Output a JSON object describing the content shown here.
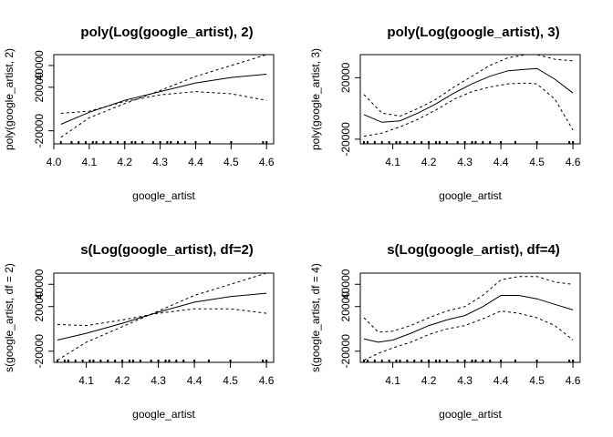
{
  "chart_data": [
    {
      "type": "line",
      "title": "poly(Log(google_artist), 2)",
      "xlabel": "google_artist",
      "ylabel": "poly(google_artist, 2)",
      "xlim": [
        4.0,
        4.62
      ],
      "ylim": [
        -32000,
        50000
      ],
      "xticks": [
        "4.0",
        "4.1",
        "4.2",
        "4.3",
        "4.4",
        "4.5",
        "4.6"
      ],
      "yticks": [
        "-20000",
        "20000",
        "40000"
      ],
      "rug": [
        4.02,
        4.05,
        4.07,
        4.09,
        4.11,
        4.12,
        4.14,
        4.16,
        4.18,
        4.2,
        4.22,
        4.23,
        4.25,
        4.28,
        4.3,
        4.32,
        4.33,
        4.35,
        4.37,
        4.4,
        4.44,
        4.5,
        4.59,
        4.6
      ],
      "series": [
        {
          "style": "solid",
          "x": [
            4.02,
            4.1,
            4.2,
            4.3,
            4.4,
            4.5,
            4.6
          ],
          "values": [
            -14000,
            -3000,
            8000,
            16000,
            24000,
            29000,
            32000
          ]
        },
        {
          "style": "dashed",
          "x": [
            4.02,
            4.1,
            4.2,
            4.3,
            4.4,
            4.5,
            4.6
          ],
          "values": [
            -26000,
            -8000,
            5000,
            17000,
            30000,
            40000,
            50000
          ]
        },
        {
          "style": "dashed",
          "x": [
            4.02,
            4.1,
            4.2,
            4.3,
            4.4,
            4.5,
            4.6
          ],
          "values": [
            -4000,
            -2000,
            7000,
            13000,
            16000,
            14000,
            8000
          ]
        }
      ]
    },
    {
      "type": "line",
      "title": "poly(Log(google_artist), 3)",
      "xlabel": "google_artist",
      "ylabel": "poly(google_artist, 3)",
      "xlim": [
        4.01,
        4.62
      ],
      "ylim": [
        -23000,
        35000
      ],
      "xticks": [
        "4.1",
        "4.2",
        "4.3",
        "4.4",
        "4.5",
        "4.6"
      ],
      "yticks": [
        "-20000",
        "20000"
      ],
      "rug": [
        4.02,
        4.03,
        4.05,
        4.07,
        4.09,
        4.11,
        4.12,
        4.14,
        4.16,
        4.18,
        4.2,
        4.22,
        4.23,
        4.25,
        4.28,
        4.3,
        4.32,
        4.33,
        4.35,
        4.37,
        4.4,
        4.44,
        4.5,
        4.59,
        4.6
      ],
      "series": [
        {
          "style": "solid",
          "x": [
            4.02,
            4.07,
            4.12,
            4.17,
            4.22,
            4.27,
            4.32,
            4.37,
            4.42,
            4.47,
            4.5,
            4.55,
            4.6
          ],
          "values": [
            -4000,
            -9000,
            -8000,
            -3000,
            3000,
            10000,
            16000,
            21000,
            24500,
            25500,
            26000,
            19000,
            10000
          ]
        },
        {
          "style": "dashed",
          "x": [
            4.02,
            4.07,
            4.12,
            4.17,
            4.22,
            4.27,
            4.32,
            4.37,
            4.42,
            4.47,
            4.5,
            4.55,
            4.6
          ],
          "values": [
            9000,
            -3000,
            -5000,
            0,
            6000,
            14000,
            21000,
            28000,
            33000,
            35000,
            35000,
            32000,
            31000
          ]
        },
        {
          "style": "dashed",
          "x": [
            4.02,
            4.07,
            4.12,
            4.17,
            4.22,
            4.27,
            4.32,
            4.37,
            4.42,
            4.47,
            4.5,
            4.55,
            4.6
          ],
          "values": [
            -18000,
            -16000,
            -12000,
            -7000,
            -1000,
            6000,
            11000,
            14000,
            16000,
            16500,
            16000,
            6000,
            -14000
          ]
        }
      ]
    },
    {
      "type": "line",
      "title": "s(Log(google_artist), df=2)",
      "xlabel": "google_artist",
      "ylabel": "s(google_artist, df = 2)",
      "xlim": [
        4.01,
        4.62
      ],
      "ylim": [
        -30000,
        50000
      ],
      "xticks": [
        "4.1",
        "4.2",
        "4.3",
        "4.4",
        "4.5",
        "4.6"
      ],
      "yticks": [
        "-20000",
        "20000",
        "40000"
      ],
      "rug": [
        4.02,
        4.04,
        4.05,
        4.07,
        4.09,
        4.11,
        4.12,
        4.14,
        4.16,
        4.18,
        4.2,
        4.22,
        4.23,
        4.25,
        4.28,
        4.3,
        4.32,
        4.33,
        4.35,
        4.37,
        4.4,
        4.44,
        4.5,
        4.59,
        4.6
      ],
      "series": [
        {
          "style": "solid",
          "x": [
            4.02,
            4.1,
            4.2,
            4.3,
            4.4,
            4.5,
            4.6
          ],
          "values": [
            -10000,
            -4000,
            5000,
            15000,
            24000,
            29000,
            32000
          ]
        },
        {
          "style": "dashed",
          "x": [
            4.02,
            4.1,
            4.2,
            4.3,
            4.4,
            4.5,
            4.6
          ],
          "values": [
            -28000,
            -12000,
            2000,
            16000,
            30000,
            40000,
            50000
          ]
        },
        {
          "style": "dashed",
          "x": [
            4.02,
            4.1,
            4.2,
            4.3,
            4.4,
            4.5,
            4.6
          ],
          "values": [
            4000,
            3000,
            8000,
            14000,
            18000,
            18000,
            14000
          ]
        }
      ]
    },
    {
      "type": "line",
      "title": "s(Log(google_artist), df=4)",
      "xlabel": "google_artist",
      "ylabel": "s(google_artist, df = 4)",
      "xlim": [
        4.01,
        4.62
      ],
      "ylim": [
        -30000,
        50000
      ],
      "xticks": [
        "4.1",
        "4.2",
        "4.3",
        "4.4",
        "4.5",
        "4.6"
      ],
      "yticks": [
        "-20000",
        "20000",
        "40000"
      ],
      "rug": [
        4.02,
        4.03,
        4.05,
        4.07,
        4.09,
        4.11,
        4.12,
        4.14,
        4.16,
        4.18,
        4.2,
        4.22,
        4.23,
        4.25,
        4.28,
        4.3,
        4.32,
        4.33,
        4.35,
        4.37,
        4.4,
        4.44,
        4.5,
        4.59,
        4.6
      ],
      "series": [
        {
          "style": "solid",
          "x": [
            4.02,
            4.06,
            4.1,
            4.15,
            4.2,
            4.25,
            4.3,
            4.35,
            4.4,
            4.45,
            4.5,
            4.55,
            4.6
          ],
          "values": [
            -9000,
            -12000,
            -10000,
            -4000,
            3000,
            8000,
            12000,
            20000,
            30000,
            30000,
            27000,
            22000,
            17000
          ]
        },
        {
          "style": "dashed",
          "x": [
            4.02,
            4.06,
            4.1,
            4.15,
            4.2,
            4.25,
            4.3,
            4.35,
            4.4,
            4.45,
            4.5,
            4.55,
            4.6
          ],
          "values": [
            10000,
            -3000,
            -2000,
            3000,
            10000,
            16000,
            20000,
            30000,
            44000,
            47000,
            47000,
            42000,
            40000
          ]
        },
        {
          "style": "dashed",
          "x": [
            4.02,
            4.06,
            4.1,
            4.15,
            4.2,
            4.25,
            4.3,
            4.35,
            4.4,
            4.45,
            4.5,
            4.55,
            4.6
          ],
          "values": [
            -28000,
            -22000,
            -17000,
            -12000,
            -5000,
            0,
            3000,
            9000,
            16000,
            14000,
            10000,
            3000,
            -10000
          ]
        }
      ]
    }
  ]
}
